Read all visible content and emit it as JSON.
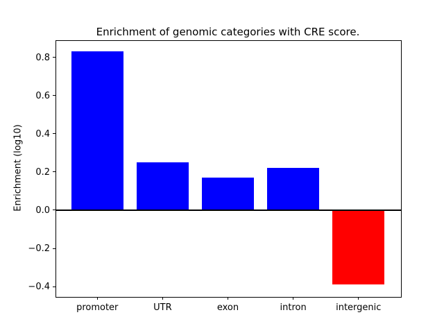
{
  "chart_data": {
    "type": "bar",
    "title": "Enrichment of genomic categories with CRE score.",
    "ylabel": "Enrichment (log10)",
    "xlabel": "",
    "categories": [
      "promoter",
      "UTR",
      "exon",
      "intron",
      "intergenic"
    ],
    "values": [
      0.83,
      0.25,
      0.17,
      0.22,
      -0.39
    ],
    "bar_colors": [
      "#0000ff",
      "#0000ff",
      "#0000ff",
      "#0000ff",
      "#ff0000"
    ],
    "positive_color": "#0000ff",
    "negative_color": "#ff0000",
    "zero_line_color": "#000000",
    "axis_color": "#000000",
    "background_color": "#ffffff",
    "y_ticks": [
      -0.4,
      -0.2,
      0.0,
      0.2,
      0.4,
      0.6,
      0.8
    ],
    "ylim": [
      -0.45,
      0.889
    ],
    "xlim": [
      -0.64,
      4.64
    ],
    "bar_width": 0.8,
    "grid": false,
    "legend_position": "none"
  }
}
